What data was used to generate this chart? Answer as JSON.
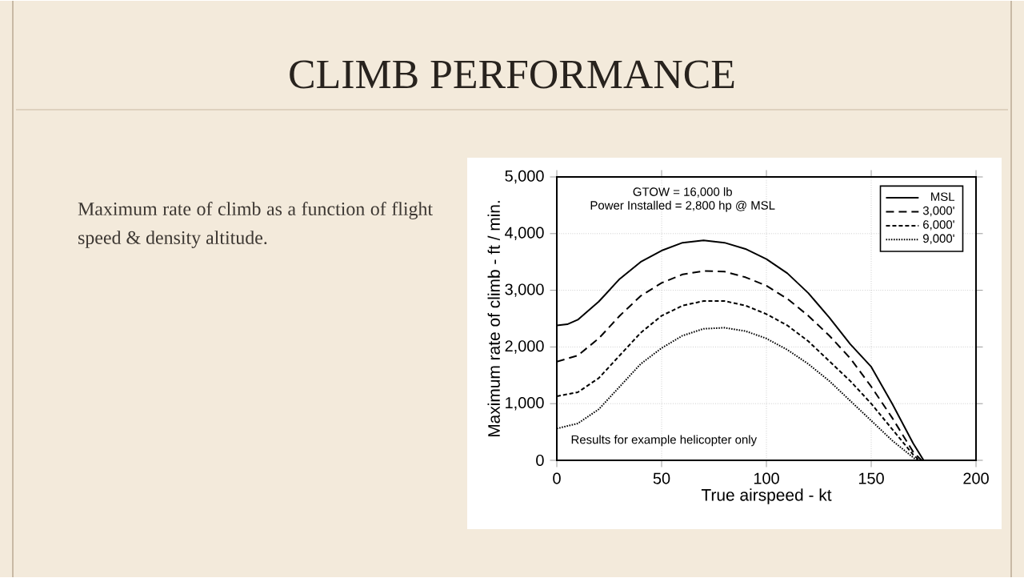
{
  "chart_data": {
    "type": "line",
    "title": "CLIMB PERFORMANCE",
    "xlabel": "True airspeed - kt",
    "ylabel": "Maximum rate of climb - ft / min.",
    "annotations": [
      "Maximum rate of climb as a function of flight speed & density altitude.",
      "GTOW = 16,000 lb",
      "Power Installed = 2,800 hp @ MSL",
      "Results for example helicopter only"
    ],
    "xlim": [
      0,
      200
    ],
    "ylim": [
      0,
      5000
    ],
    "xticks": [
      0,
      50,
      100,
      150,
      200
    ],
    "yticks": [
      0,
      {
        "value": 1000,
        "label": "1,000"
      },
      {
        "value": 2000,
        "label": "2,000"
      },
      {
        "value": 3000,
        "label": "3,000"
      },
      {
        "value": 4000,
        "label": "4,000"
      },
      {
        "value": 5000,
        "label": "5,000"
      }
    ],
    "grid": true,
    "legend": "top right",
    "marker": "none",
    "series": [
      {
        "name": "MSL",
        "color": "#000000",
        "line_style": "solid",
        "x": [
          0,
          5,
          10,
          20,
          30,
          40,
          50,
          60,
          70,
          80,
          90,
          100,
          110,
          120,
          130,
          140,
          150,
          160,
          170,
          175
        ],
        "values": [
          2380,
          2400,
          2480,
          2800,
          3200,
          3500,
          3700,
          3840,
          3880,
          3840,
          3730,
          3550,
          3300,
          2950,
          2520,
          2050,
          1650,
          1000,
          300,
          0
        ]
      },
      {
        "name": "3,000'",
        "color": "#000000",
        "line_style": "dashed",
        "x": [
          0,
          10,
          20,
          30,
          40,
          50,
          60,
          70,
          80,
          90,
          100,
          110,
          120,
          130,
          140,
          150,
          160,
          170,
          174
        ],
        "values": [
          1740,
          1850,
          2150,
          2550,
          2900,
          3130,
          3280,
          3340,
          3330,
          3230,
          3080,
          2850,
          2550,
          2200,
          1800,
          1300,
          750,
          150,
          0
        ]
      },
      {
        "name": "6,000'",
        "color": "#000000",
        "line_style": "dashed",
        "x": [
          0,
          10,
          20,
          30,
          40,
          50,
          60,
          70,
          80,
          90,
          100,
          110,
          120,
          130,
          140,
          150,
          160,
          170,
          173
        ],
        "values": [
          1130,
          1200,
          1450,
          1850,
          2250,
          2550,
          2730,
          2810,
          2810,
          2730,
          2580,
          2380,
          2100,
          1750,
          1400,
          1000,
          550,
          100,
          0
        ]
      },
      {
        "name": "9,000'",
        "color": "#000000",
        "line_style": "dotted",
        "x": [
          0,
          10,
          20,
          30,
          40,
          50,
          60,
          70,
          80,
          90,
          100,
          110,
          120,
          130,
          140,
          150,
          160,
          170,
          172
        ],
        "values": [
          560,
          650,
          900,
          1300,
          1700,
          1980,
          2200,
          2320,
          2340,
          2280,
          2150,
          1950,
          1700,
          1400,
          1050,
          700,
          350,
          50,
          0
        ]
      }
    ]
  }
}
